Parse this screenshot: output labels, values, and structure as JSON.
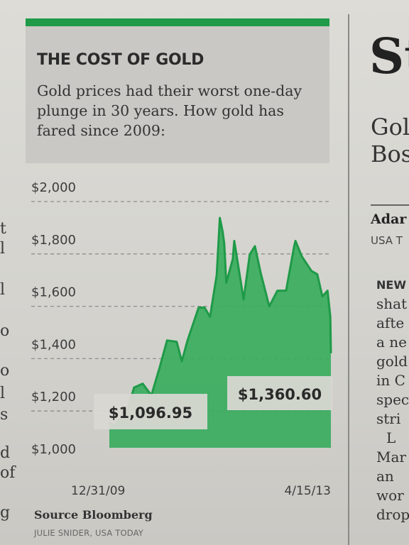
{
  "left_column": {
    "chars": [
      "t",
      "l",
      "l",
      "o",
      "o",
      "l",
      "s",
      "d",
      "of",
      "g"
    ]
  },
  "graphic": {
    "title": "THE COST OF GOLD",
    "subtitle": "Gold prices had their worst one-day plunge in 30 years. How gold has fared since 2009:",
    "source": "Source Bloomberg",
    "credit": "JULIE SNIDER, USA TODAY",
    "accent_color": "#1f9a48",
    "fill_color": "#3aad5e"
  },
  "chart_data": {
    "type": "area",
    "title": "THE COST OF GOLD",
    "xlabel": "",
    "ylabel": "",
    "y_tick_labels": [
      "$2,000",
      "$1,800",
      "$1,600",
      "$1,400",
      "$1,200",
      "$1,000"
    ],
    "y_ticks": [
      2000,
      1800,
      1600,
      1400,
      1200,
      1000
    ],
    "ylim": [
      1000,
      2000
    ],
    "x_tick_labels": [
      "12/31/09",
      "4/15/13"
    ],
    "xlim": [
      "2009-12-31",
      "2013-04-15"
    ],
    "grid": "dashed horizontal",
    "series": [
      {
        "x": [
          "2009-12-31",
          "2010-01-29",
          "2010-02-26",
          "2010-04-01",
          "2010-05-14",
          "2010-06-30",
          "2010-08-16",
          "2010-09-30",
          "2010-11-09",
          "2010-12-31",
          "2011-01-28",
          "2011-02-28",
          "2011-04-29",
          "2011-05-31",
          "2011-06-30",
          "2011-08-05",
          "2011-08-22",
          "2011-09-06",
          "2011-09-15",
          "2011-09-26",
          "2011-10-31",
          "2011-11-08",
          "2011-12-29",
          "2012-01-31",
          "2012-02-28",
          "2012-03-30",
          "2012-05-16",
          "2012-06-29",
          "2012-08-15",
          "2012-09-28",
          "2012-10-05",
          "2012-11-09",
          "2012-12-31",
          "2013-01-31",
          "2013-02-28",
          "2013-03-28",
          "2013-04-12",
          "2013-04-15"
        ],
        "values": [
          1096.95,
          1083,
          1108,
          1126,
          1230,
          1245,
          1200,
          1307,
          1410,
          1405,
          1330,
          1410,
          1535,
          1536,
          1500,
          1660,
          1878,
          1826,
          1780,
          1630,
          1720,
          1790,
          1566,
          1738,
          1770,
          1669,
          1540,
          1600,
          1600,
          1770,
          1790,
          1730,
          1675,
          1663,
          1578,
          1600,
          1500,
          1360.6
        ]
      }
    ],
    "annotations": [
      {
        "label": "$1,096.95",
        "x": "2009-12-31",
        "value": 1096.95
      },
      {
        "label": "$1,360.60",
        "x": "2013-04-15",
        "value": 1360.6
      }
    ]
  },
  "right_column": {
    "headline_big": "St",
    "headline_line1": "Gol",
    "headline_line2": "Bos",
    "author": "Adar",
    "affiliation": "USA T",
    "body_lines": [
      "NEW",
      "shat",
      "afte",
      "a ne",
      "gold",
      "in C",
      "spec",
      "stri",
      "L",
      "Mar",
      "an",
      "wor",
      "drop"
    ]
  }
}
